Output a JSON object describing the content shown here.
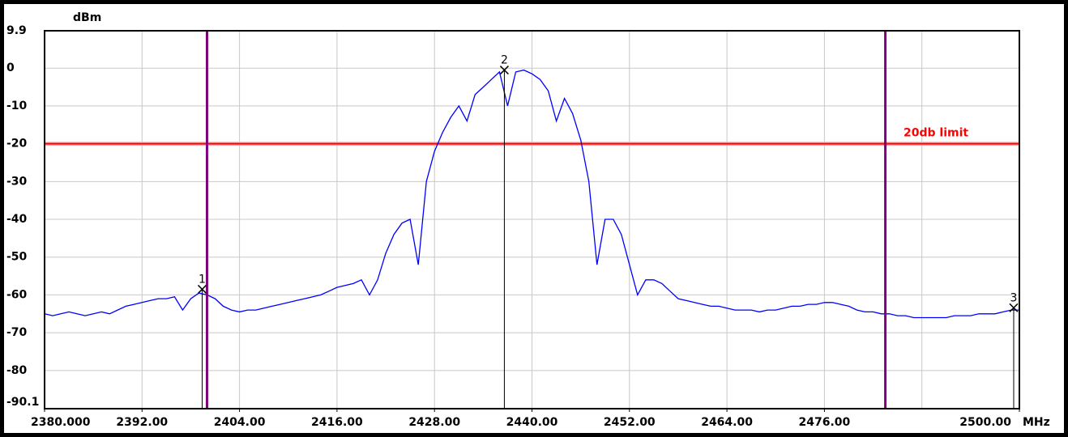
{
  "chart_data": {
    "type": "line",
    "y_unit": "dBm",
    "x_unit": "MHz",
    "xlim": [
      2380,
      2500
    ],
    "ylim": [
      -90.1,
      9.9
    ],
    "xticks": [
      {
        "value": 2380,
        "label": "2380.000"
      },
      {
        "value": 2392,
        "label": "2392.00"
      },
      {
        "value": 2404,
        "label": "2404.00"
      },
      {
        "value": 2416,
        "label": "2416.00"
      },
      {
        "value": 2428,
        "label": "2428.00"
      },
      {
        "value": 2440,
        "label": "2440.00"
      },
      {
        "value": 2452,
        "label": "2452.00"
      },
      {
        "value": 2464,
        "label": "2464.00"
      },
      {
        "value": 2476,
        "label": "2476.00"
      },
      {
        "value": 2500,
        "label": "2500.00"
      }
    ],
    "xgrid": [
      2392,
      2404,
      2416,
      2428,
      2440,
      2452,
      2464,
      2476,
      2488
    ],
    "yticks": [
      9.9,
      0,
      -10,
      -20,
      -30,
      -40,
      -50,
      -60,
      -70,
      -80,
      -90.1
    ],
    "grid": true,
    "series": [
      {
        "color": "#0000ff",
        "x": [
          2380,
          2381,
          2382,
          2383,
          2384,
          2385,
          2386,
          2387,
          2388,
          2389,
          2390,
          2391,
          2392,
          2393,
          2394,
          2395,
          2396,
          2397,
          2398,
          2399,
          2400,
          2401,
          2402,
          2403,
          2404,
          2405,
          2406,
          2407,
          2408,
          2409,
          2410,
          2411,
          2412,
          2413,
          2414,
          2415,
          2416,
          2417,
          2418,
          2419,
          2420,
          2421,
          2422,
          2423,
          2424,
          2425,
          2426,
          2427,
          2428,
          2429,
          2430,
          2431,
          2432,
          2433,
          2434,
          2435,
          2436,
          2437,
          2438,
          2439,
          2440,
          2441,
          2442,
          2443,
          2444,
          2445,
          2446,
          2447,
          2448,
          2449,
          2450,
          2451,
          2452,
          2453,
          2454,
          2455,
          2456,
          2457,
          2458,
          2459,
          2460,
          2461,
          2462,
          2463,
          2464,
          2465,
          2466,
          2467,
          2468,
          2469,
          2470,
          2471,
          2472,
          2473,
          2474,
          2475,
          2476,
          2477,
          2478,
          2479,
          2480,
          2481,
          2482,
          2483,
          2484,
          2485,
          2486,
          2487,
          2488,
          2489,
          2490,
          2491,
          2492,
          2493,
          2494,
          2495,
          2496,
          2497,
          2498,
          2499,
          2500
        ],
        "values": [
          -65,
          -65.5,
          -65,
          -64.5,
          -65,
          -65.5,
          -65,
          -64.5,
          -65,
          -64,
          -63,
          -62.5,
          -62,
          -61.5,
          -61,
          -61,
          -60.5,
          -64,
          -61,
          -59.5,
          -60,
          -61,
          -63,
          -64,
          -64.5,
          -64,
          -64,
          -63.5,
          -63,
          -62.5,
          -62,
          -61.5,
          -61,
          -60.5,
          -60,
          -59,
          -58,
          -57.5,
          -57,
          -56,
          -60,
          -56,
          -49,
          -44,
          -41,
          -40,
          -52,
          -30,
          -22,
          -17,
          -13,
          -10,
          -14,
          -7,
          -5,
          -3,
          -1,
          -10,
          -1,
          -0.5,
          -1.5,
          -3,
          -6,
          -14,
          -8,
          -12,
          -19,
          -30,
          -52,
          -40,
          -40,
          -44,
          -52,
          -60,
          -56,
          -56,
          -57,
          -59,
          -61,
          -61.5,
          -62,
          -62.5,
          -63,
          -63,
          -63.5,
          -64,
          -64,
          -64,
          -64.5,
          -64,
          -64,
          -63.5,
          -63,
          -63,
          -62.5,
          -62.5,
          -62,
          -62,
          -62.5,
          -63,
          -64,
          -64.5,
          -64.5,
          -65,
          -65,
          -65.5,
          -65.5,
          -66,
          -66,
          -66,
          -66,
          -66,
          -65.5,
          -65.5,
          -65.5,
          -65,
          -65,
          -65,
          -64.5,
          -64,
          -64
        ]
      }
    ],
    "markers": [
      {
        "label": "1",
        "x": 2399.4,
        "y": -58.5
      },
      {
        "label": "2",
        "x": 2436.6,
        "y": -0.5
      },
      {
        "label": "3",
        "x": 2499.3,
        "y": -63.4
      }
    ],
    "vlines": {
      "color": "#800080",
      "x": [
        2400,
        2483.5
      ]
    },
    "limit": {
      "label": "20db limit",
      "value": -20,
      "color": "#ff0000"
    }
  }
}
